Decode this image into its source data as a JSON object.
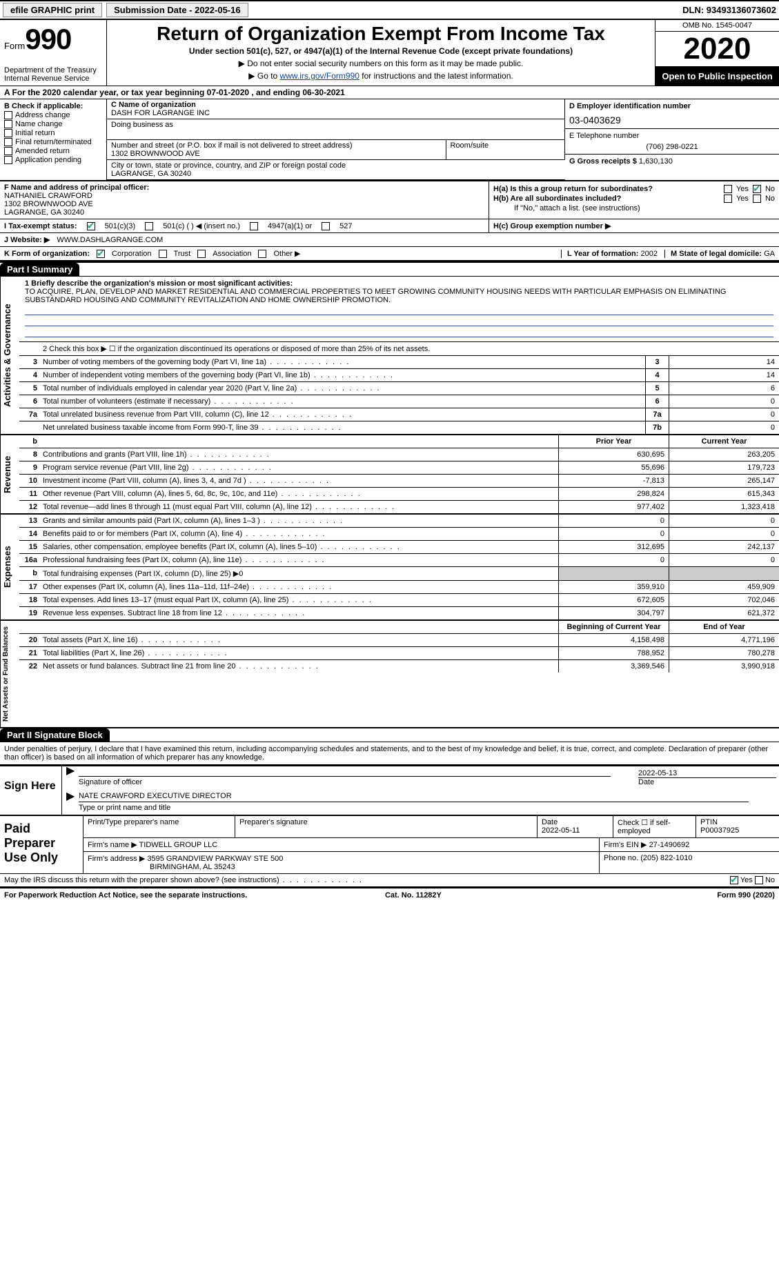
{
  "topbar": {
    "efile": "efile GRAPHIC print",
    "submission_label": "Submission Date - 2022-05-16",
    "dln": "DLN: 93493136073602"
  },
  "header": {
    "form_word": "Form",
    "form_no": "990",
    "dept": "Department of the Treasury\nInternal Revenue Service",
    "title": "Return of Organization Exempt From Income Tax",
    "sub": "Under section 501(c), 527, or 4947(a)(1) of the Internal Revenue Code (except private foundations)",
    "arrow1": "▶ Do not enter social security numbers on this form as it may be made public.",
    "arrow2_pre": "▶ Go to ",
    "arrow2_link": "www.irs.gov/Form990",
    "arrow2_post": " for instructions and the latest information.",
    "omb": "OMB No. 1545-0047",
    "year": "2020",
    "open": "Open to Public Inspection"
  },
  "period": "A For the 2020 calendar year, or tax year beginning 07-01-2020    , and ending 06-30-2021",
  "B": {
    "title": "B Check if applicable:",
    "items": [
      "Address change",
      "Name change",
      "Initial return",
      "Final return/terminated",
      "Amended return",
      "Application pending"
    ]
  },
  "C": {
    "name_lbl": "C Name of organization",
    "name": "DASH FOR LAGRANGE INC",
    "dba_lbl": "Doing business as",
    "addr_lbl": "Number and street (or P.O. box if mail is not delivered to street address)",
    "room_lbl": "Room/suite",
    "addr": "1302 BROWNWOOD AVE",
    "city_lbl": "City or town, state or province, country, and ZIP or foreign postal code",
    "city": "LAGRANGE, GA  30240"
  },
  "D": {
    "lbl": "D Employer identification number",
    "val": "03-0403629"
  },
  "E": {
    "lbl": "E Telephone number",
    "val": "(706) 298-0221"
  },
  "G": {
    "lbl": "G Gross receipts $",
    "val": "1,630,130"
  },
  "F": {
    "lbl": "F  Name and address of principal officer:",
    "name": "NATHANIEL CRAWFORD",
    "addr1": "1302 BROWNWOOD AVE",
    "addr2": "LAGRANGE, GA  30240"
  },
  "H": {
    "a": "H(a)  Is this a group return for subordinates?",
    "b": "H(b)  Are all subordinates included?",
    "b_note": "If \"No,\" attach a list. (see instructions)",
    "c": "H(c)  Group exemption number ▶",
    "yes": "Yes",
    "no": "No"
  },
  "I": {
    "lbl": "I   Tax-exempt status:",
    "opts": [
      "501(c)(3)",
      "501(c) (   ) ◀ (insert no.)",
      "4947(a)(1) or",
      "527"
    ]
  },
  "J": {
    "lbl": "J   Website: ▶",
    "val": "WWW.DASHLAGRANGE.COM"
  },
  "K": {
    "lbl": "K Form of organization:",
    "opts": [
      "Corporation",
      "Trust",
      "Association",
      "Other ▶"
    ]
  },
  "L": {
    "lbl": "L Year of formation:",
    "val": "2002"
  },
  "M": {
    "lbl": "M State of legal domicile:",
    "val": "GA"
  },
  "part1": {
    "title": "Part I     Summary",
    "line1_lbl": "1  Briefly describe the organization's mission or most significant activities:",
    "line1_val": "TO ACQUIRE, PLAN, DEVELOP AND MARKET RESIDENTIAL AND COMMERCIAL PROPERTIES TO MEET GROWING COMMUNITY HOUSING NEEDS WITH PARTICULAR EMPHASIS ON ELIMINATING SUBSTANDARD HOUSING AND COMMUNITY REVITALIZATION AND HOME OWNERSHIP PROMOTION.",
    "line2": "2   Check this box ▶ ☐ if the organization discontinued its operations or disposed of more than 25% of its net assets.",
    "gov_side": "Activities & Governance",
    "gov_rows": [
      {
        "n": "3",
        "d": "Number of voting members of the governing body (Part VI, line 1a)",
        "c": "3",
        "v": "14"
      },
      {
        "n": "4",
        "d": "Number of independent voting members of the governing body (Part VI, line 1b)",
        "c": "4",
        "v": "14"
      },
      {
        "n": "5",
        "d": "Total number of individuals employed in calendar year 2020 (Part V, line 2a)",
        "c": "5",
        "v": "6"
      },
      {
        "n": "6",
        "d": "Total number of volunteers (estimate if necessary)",
        "c": "6",
        "v": "0"
      },
      {
        "n": "7a",
        "d": "Total unrelated business revenue from Part VIII, column (C), line 12",
        "c": "7a",
        "v": "0"
      },
      {
        "n": "",
        "d": "Net unrelated business taxable income from Form 990-T, line 39",
        "c": "7b",
        "v": "0"
      }
    ],
    "prior_hdr": "Prior Year",
    "curr_hdr": "Current Year",
    "rev_side": "Revenue",
    "rev_rows": [
      {
        "n": "8",
        "d": "Contributions and grants (Part VIII, line 1h)",
        "p": "630,695",
        "c": "263,205"
      },
      {
        "n": "9",
        "d": "Program service revenue (Part VIII, line 2g)",
        "p": "55,696",
        "c": "179,723"
      },
      {
        "n": "10",
        "d": "Investment income (Part VIII, column (A), lines 3, 4, and 7d )",
        "p": "-7,813",
        "c": "265,147"
      },
      {
        "n": "11",
        "d": "Other revenue (Part VIII, column (A), lines 5, 6d, 8c, 9c, 10c, and 11e)",
        "p": "298,824",
        "c": "615,343"
      },
      {
        "n": "12",
        "d": "Total revenue—add lines 8 through 11 (must equal Part VIII, column (A), line 12)",
        "p": "977,402",
        "c": "1,323,418"
      }
    ],
    "exp_side": "Expenses",
    "exp_rows": [
      {
        "n": "13",
        "d": "Grants and similar amounts paid (Part IX, column (A), lines 1–3 )",
        "p": "0",
        "c": "0"
      },
      {
        "n": "14",
        "d": "Benefits paid to or for members (Part IX, column (A), line 4)",
        "p": "0",
        "c": "0"
      },
      {
        "n": "15",
        "d": "Salaries, other compensation, employee benefits (Part IX, column (A), lines 5–10)",
        "p": "312,695",
        "c": "242,137"
      },
      {
        "n": "16a",
        "d": "Professional fundraising fees (Part IX, column (A), line 11e)",
        "p": "0",
        "c": "0"
      },
      {
        "n": "b",
        "d": "Total fundraising expenses (Part IX, column (D), line 25) ▶0",
        "p": "",
        "c": ""
      },
      {
        "n": "17",
        "d": "Other expenses (Part IX, column (A), lines 11a–11d, 11f–24e)",
        "p": "359,910",
        "c": "459,909"
      },
      {
        "n": "18",
        "d": "Total expenses. Add lines 13–17 (must equal Part IX, column (A), line 25)",
        "p": "672,605",
        "c": "702,046"
      },
      {
        "n": "19",
        "d": "Revenue less expenses. Subtract line 18 from line 12",
        "p": "304,797",
        "c": "621,372"
      }
    ],
    "na_side": "Net Assets or Fund Balances",
    "na_hdr_p": "Beginning of Current Year",
    "na_hdr_c": "End of Year",
    "na_rows": [
      {
        "n": "20",
        "d": "Total assets (Part X, line 16)",
        "p": "4,158,498",
        "c": "4,771,196"
      },
      {
        "n": "21",
        "d": "Total liabilities (Part X, line 26)",
        "p": "788,952",
        "c": "780,278"
      },
      {
        "n": "22",
        "d": "Net assets or fund balances. Subtract line 21 from line 20",
        "p": "3,369,546",
        "c": "3,990,918"
      }
    ]
  },
  "part2": {
    "title": "Part II     Signature Block",
    "decl": "Under penalties of perjury, I declare that I have examined this return, including accompanying schedules and statements, and to the best of my knowledge and belief, it is true, correct, and complete. Declaration of preparer (other than officer) is based on all information of which preparer has any knowledge.",
    "sign_here": "Sign Here",
    "sig_officer": "Signature of officer",
    "sig_date": "2022-05-13",
    "date_lbl": "Date",
    "officer_name": "NATE CRAWFORD  EXECUTIVE DIRECTOR",
    "name_title_lbl": "Type or print name and title"
  },
  "prep": {
    "title": "Paid Preparer Use Only",
    "h_name": "Print/Type preparer's name",
    "h_sig": "Preparer's signature",
    "h_date": "Date",
    "date": "2022-05-11",
    "h_self": "Check ☐ if self-employed",
    "h_ptin": "PTIN",
    "ptin": "P00037925",
    "firm_lbl": "Firm's name    ▶",
    "firm": "TIDWELL GROUP LLC",
    "ein_lbl": "Firm's EIN ▶",
    "ein": "27-1490692",
    "addr_lbl": "Firm's address ▶",
    "addr1": "3595 GRANDVIEW PARKWAY STE 500",
    "addr2": "BIRMINGHAM, AL  35243",
    "phone_lbl": "Phone no.",
    "phone": "(205) 822-1010",
    "discuss": "May the IRS discuss this return with the preparer shown above? (see instructions)",
    "yes": "Yes",
    "no": "No"
  },
  "footer": {
    "left": "For Paperwork Reduction Act Notice, see the separate instructions.",
    "mid": "Cat. No. 11282Y",
    "right": "Form 990 (2020)"
  }
}
